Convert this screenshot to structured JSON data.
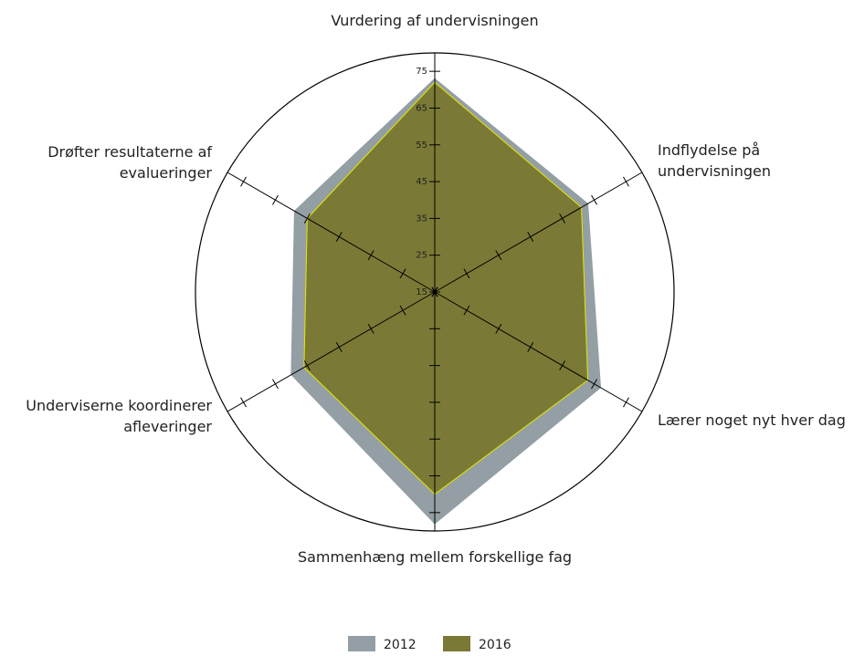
{
  "chart_data": {
    "type": "radar",
    "categories": [
      "Vurdering af undervisningen",
      "Indflydelse på\nundervisningen",
      "Lærer noget nyt hver dag",
      "Sammenhæng mellem forskellige fag",
      "Underviserne koordinerer\nafleveringer",
      "Drøfter resultaterne af\nevalueringer"
    ],
    "series": [
      {
        "name": "2012",
        "color": "#939fa4",
        "values": [
          73,
          63,
          67,
          78,
          60,
          59
        ]
      },
      {
        "name": "2016",
        "color": "#7a7a36",
        "edge": "#e6e600",
        "values": [
          72,
          61,
          63,
          70,
          56,
          55
        ]
      }
    ],
    "rlim": [
      15,
      80
    ],
    "rticks": [
      15,
      25,
      35,
      45,
      55,
      65,
      75
    ]
  }
}
